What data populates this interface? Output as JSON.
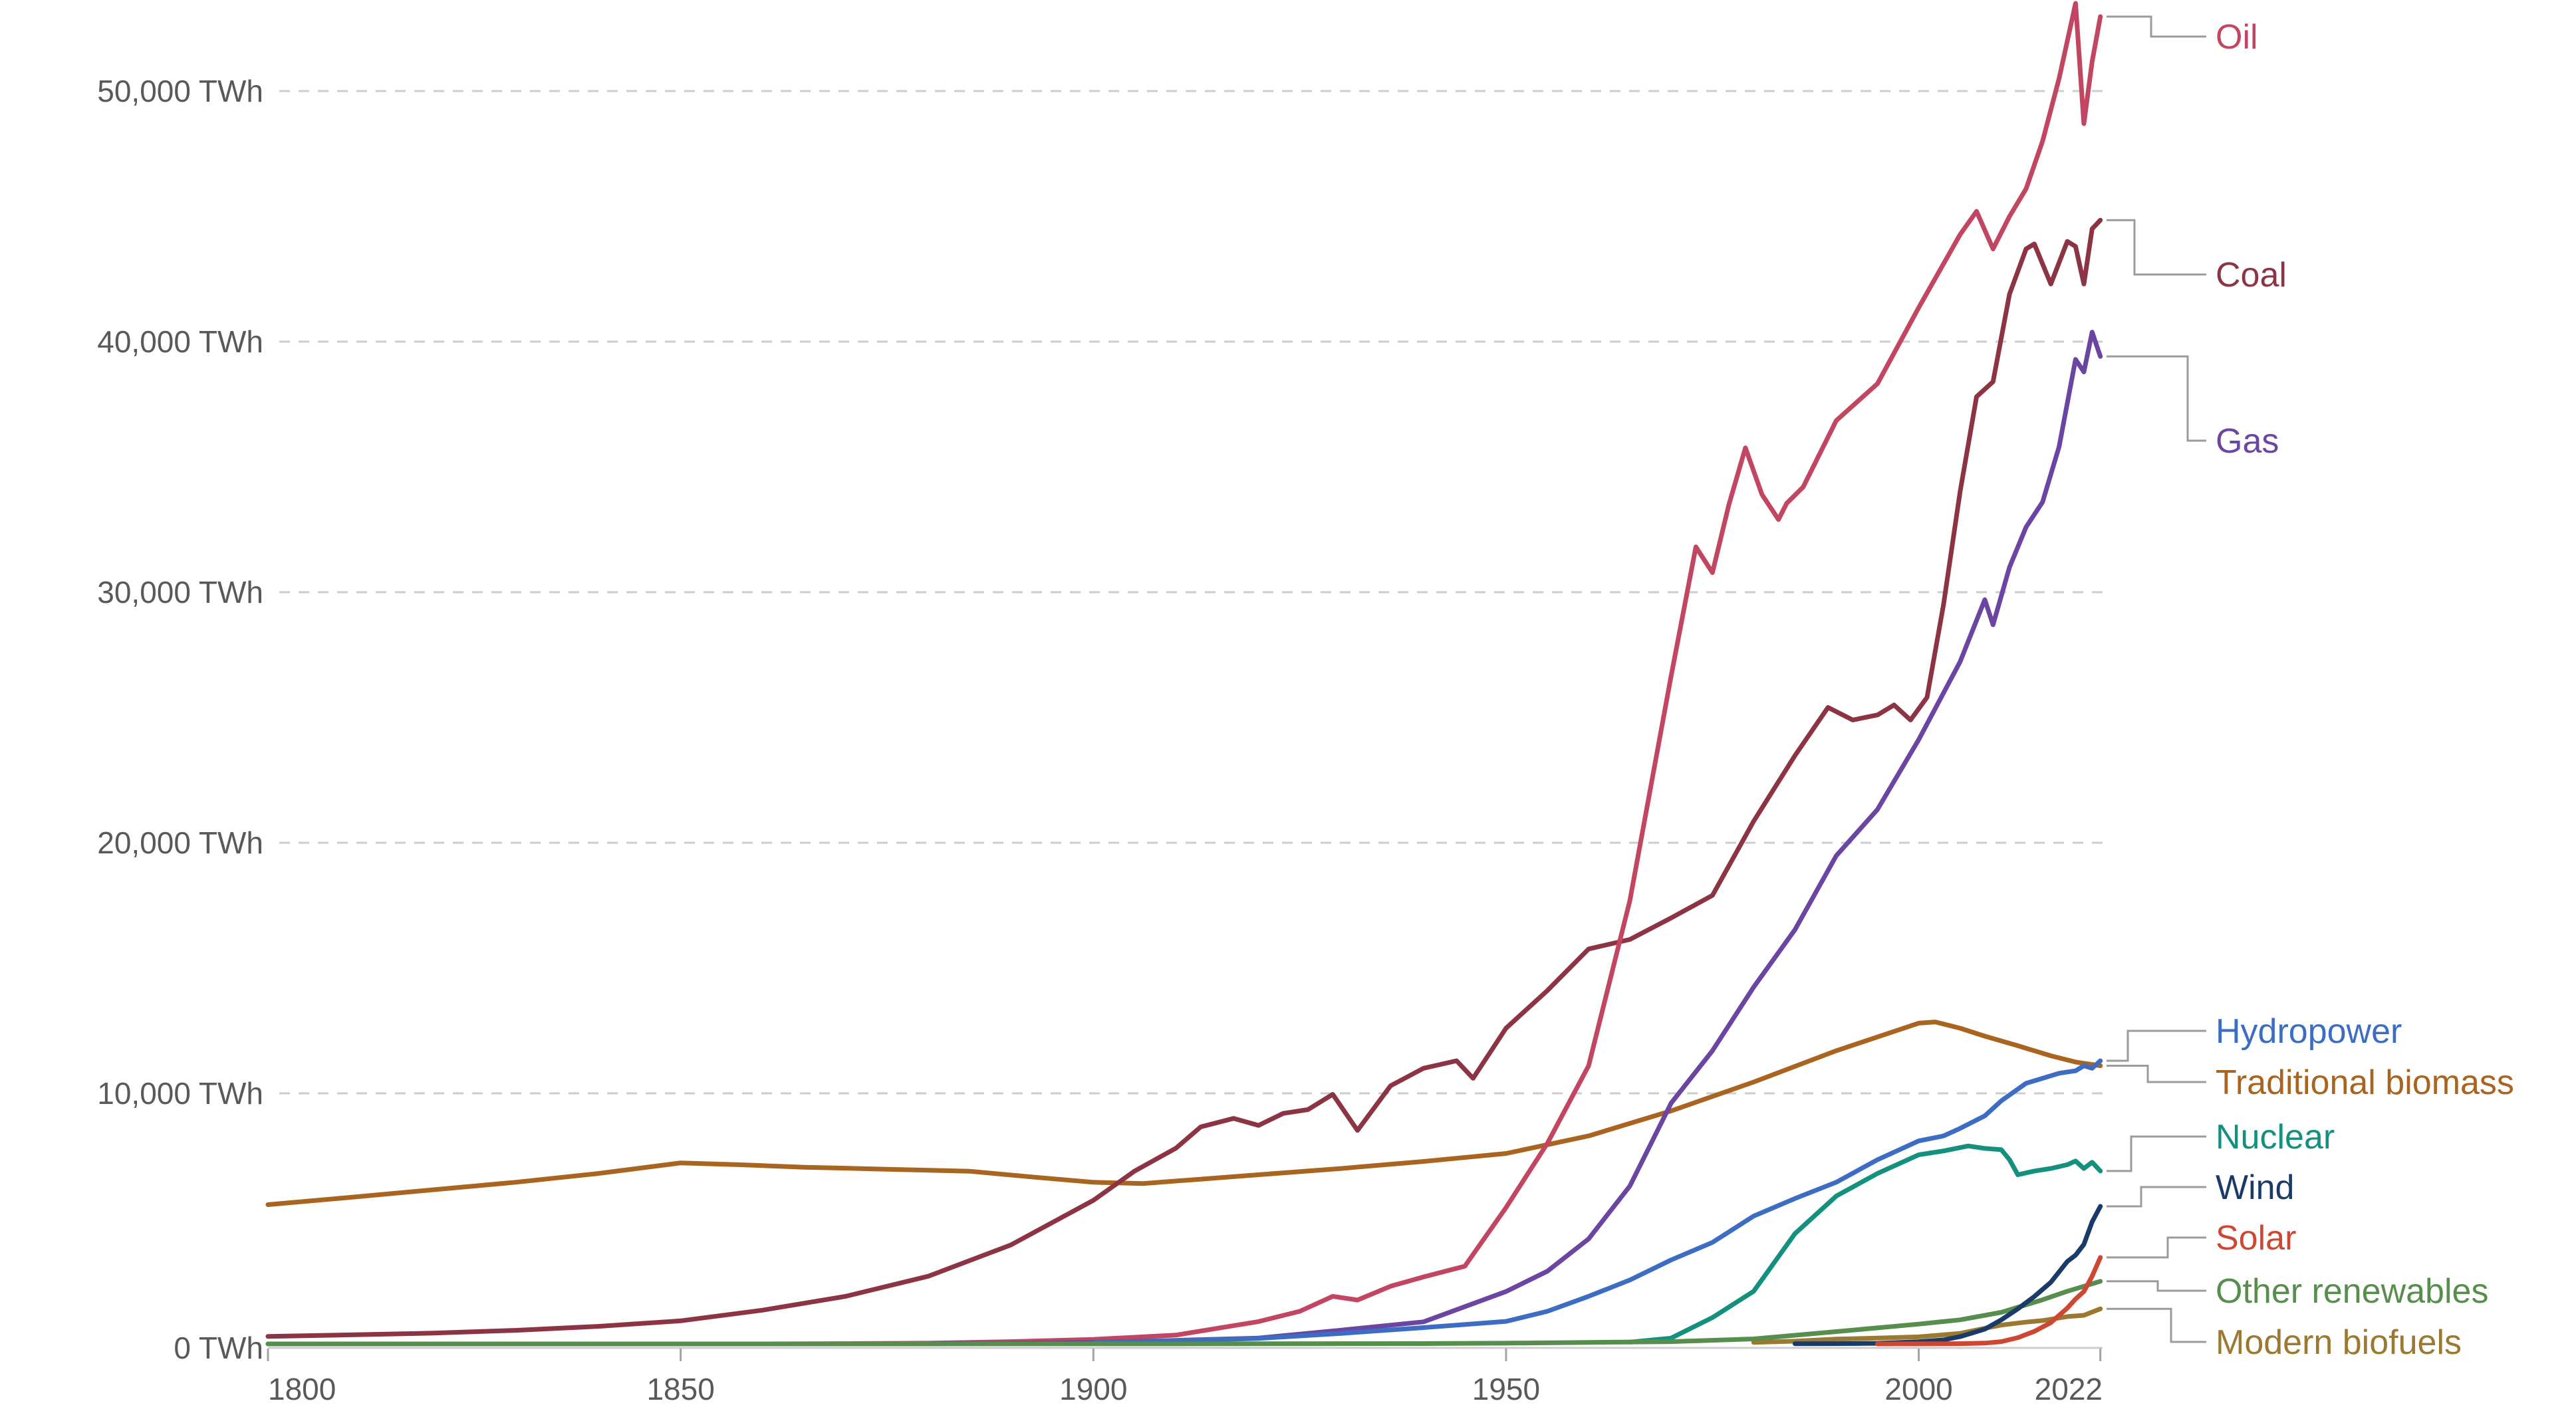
{
  "chart_data": {
    "type": "line",
    "title": "",
    "unit": "TWh",
    "x_axis": {
      "min": 1800,
      "max": 2022,
      "ticks": [
        1800,
        1850,
        1900,
        1950,
        2000,
        2022
      ],
      "tick_labels": [
        "1800",
        "1850",
        "1900",
        "1950",
        "2000",
        "2022"
      ]
    },
    "y_axis": {
      "min": 0,
      "max": 53600,
      "ticks": [
        0,
        10000,
        20000,
        30000,
        40000,
        50000
      ],
      "tick_labels": [
        "0 TWh",
        "10,000 TWh",
        "20,000 TWh",
        "30,000 TWh",
        "40,000 TWh",
        "50,000 TWh"
      ],
      "gridlines": "dashed horizontal"
    },
    "legend_position": "right-edge direct labels with gray leader lines",
    "series": [
      {
        "id": "oil",
        "name": "Oil",
        "color": "#c24562",
        "points": [
          [
            1800,
            0
          ],
          [
            1850,
            0
          ],
          [
            1860,
            1
          ],
          [
            1870,
            10
          ],
          [
            1880,
            30
          ],
          [
            1890,
            90
          ],
          [
            1900,
            180
          ],
          [
            1910,
            350
          ],
          [
            1920,
            890
          ],
          [
            1925,
            1300
          ],
          [
            1929,
            1900
          ],
          [
            1932,
            1750
          ],
          [
            1936,
            2300
          ],
          [
            1940,
            2670
          ],
          [
            1945,
            3100
          ],
          [
            1950,
            5440
          ],
          [
            1955,
            8000
          ],
          [
            1960,
            11100
          ],
          [
            1965,
            17690
          ],
          [
            1970,
            26660
          ],
          [
            1973,
            31810
          ],
          [
            1975,
            30780
          ],
          [
            1977,
            33500
          ],
          [
            1979,
            35760
          ],
          [
            1981,
            33900
          ],
          [
            1983,
            32900
          ],
          [
            1984,
            33550
          ],
          [
            1986,
            34200
          ],
          [
            1990,
            36850
          ],
          [
            1995,
            38320
          ],
          [
            2000,
            41360
          ],
          [
            2005,
            44270
          ],
          [
            2007,
            45200
          ],
          [
            2009,
            43700
          ],
          [
            2011,
            45000
          ],
          [
            2013,
            46100
          ],
          [
            2015,
            48000
          ],
          [
            2017,
            50500
          ],
          [
            2019,
            53500
          ],
          [
            2020,
            48700
          ],
          [
            2021,
            51170
          ],
          [
            2022,
            52970
          ]
        ]
      },
      {
        "id": "coal",
        "name": "Coal",
        "color": "#8d3444",
        "points": [
          [
            1800,
            300
          ],
          [
            1810,
            360
          ],
          [
            1820,
            430
          ],
          [
            1830,
            540
          ],
          [
            1840,
            700
          ],
          [
            1850,
            920
          ],
          [
            1860,
            1350
          ],
          [
            1870,
            1900
          ],
          [
            1880,
            2700
          ],
          [
            1890,
            3950
          ],
          [
            1900,
            5730
          ],
          [
            1905,
            6900
          ],
          [
            1910,
            7810
          ],
          [
            1913,
            8660
          ],
          [
            1917,
            9000
          ],
          [
            1920,
            8720
          ],
          [
            1923,
            9200
          ],
          [
            1926,
            9350
          ],
          [
            1929,
            9960
          ],
          [
            1932,
            8520
          ],
          [
            1936,
            10300
          ],
          [
            1940,
            11000
          ],
          [
            1944,
            11300
          ],
          [
            1946,
            10600
          ],
          [
            1950,
            12600
          ],
          [
            1955,
            14100
          ],
          [
            1960,
            15760
          ],
          [
            1965,
            16140
          ],
          [
            1970,
            17000
          ],
          [
            1975,
            17900
          ],
          [
            1980,
            20860
          ],
          [
            1985,
            23480
          ],
          [
            1989,
            25400
          ],
          [
            1992,
            24900
          ],
          [
            1995,
            25100
          ],
          [
            1997,
            25500
          ],
          [
            1999,
            24900
          ],
          [
            2001,
            25800
          ],
          [
            2003,
            29500
          ],
          [
            2005,
            34000
          ],
          [
            2007,
            37800
          ],
          [
            2009,
            38400
          ],
          [
            2011,
            41900
          ],
          [
            2013,
            43700
          ],
          [
            2014,
            43900
          ],
          [
            2016,
            42300
          ],
          [
            2018,
            44000
          ],
          [
            2019,
            43800
          ],
          [
            2020,
            42300
          ],
          [
            2021,
            44500
          ],
          [
            2022,
            44850
          ]
        ]
      },
      {
        "id": "gas",
        "name": "Gas",
        "color": "#6a46a2",
        "points": [
          [
            1880,
            5
          ],
          [
            1890,
            30
          ],
          [
            1900,
            64
          ],
          [
            1910,
            140
          ],
          [
            1920,
            233
          ],
          [
            1930,
            550
          ],
          [
            1940,
            880
          ],
          [
            1950,
            2090
          ],
          [
            1955,
            2900
          ],
          [
            1960,
            4190
          ],
          [
            1965,
            6300
          ],
          [
            1970,
            9610
          ],
          [
            1975,
            11700
          ],
          [
            1980,
            14240
          ],
          [
            1985,
            16530
          ],
          [
            1990,
            19480
          ],
          [
            1995,
            21330
          ],
          [
            2000,
            24120
          ],
          [
            2005,
            27220
          ],
          [
            2008,
            29700
          ],
          [
            2009,
            28700
          ],
          [
            2011,
            31000
          ],
          [
            2013,
            32600
          ],
          [
            2015,
            33600
          ],
          [
            2017,
            35800
          ],
          [
            2019,
            39290
          ],
          [
            2020,
            38790
          ],
          [
            2021,
            40380
          ],
          [
            2022,
            39410
          ]
        ]
      },
      {
        "id": "hydropower",
        "name": "Hydropower",
        "color": "#3d6dc2",
        "points": [
          [
            1900,
            50
          ],
          [
            1910,
            130
          ],
          [
            1920,
            220
          ],
          [
            1930,
            420
          ],
          [
            1940,
            650
          ],
          [
            1950,
            900
          ],
          [
            1955,
            1300
          ],
          [
            1960,
            1900
          ],
          [
            1965,
            2550
          ],
          [
            1970,
            3350
          ],
          [
            1975,
            4050
          ],
          [
            1980,
            5100
          ],
          [
            1985,
            5800
          ],
          [
            1990,
            6450
          ],
          [
            1995,
            7350
          ],
          [
            2000,
            8100
          ],
          [
            2003,
            8300
          ],
          [
            2005,
            8600
          ],
          [
            2008,
            9100
          ],
          [
            2010,
            9700
          ],
          [
            2013,
            10400
          ],
          [
            2015,
            10600
          ],
          [
            2017,
            10800
          ],
          [
            2019,
            10900
          ],
          [
            2020,
            11100
          ],
          [
            2021,
            11000
          ],
          [
            2022,
            11300
          ]
        ]
      },
      {
        "id": "traditional_biomass",
        "name": "Traditional biomass",
        "color": "#a9641f",
        "points": [
          [
            1800,
            5556
          ],
          [
            1810,
            5850
          ],
          [
            1820,
            6150
          ],
          [
            1830,
            6450
          ],
          [
            1840,
            6800
          ],
          [
            1850,
            7222
          ],
          [
            1857,
            7150
          ],
          [
            1865,
            7050
          ],
          [
            1875,
            6970
          ],
          [
            1885,
            6890
          ],
          [
            1893,
            6650
          ],
          [
            1900,
            6450
          ],
          [
            1906,
            6400
          ],
          [
            1912,
            6550
          ],
          [
            1920,
            6750
          ],
          [
            1930,
            7000
          ],
          [
            1940,
            7280
          ],
          [
            1950,
            7600
          ],
          [
            1960,
            8300
          ],
          [
            1970,
            9300
          ],
          [
            1980,
            10450
          ],
          [
            1990,
            11700
          ],
          [
            1995,
            12250
          ],
          [
            2000,
            12800
          ],
          [
            2002,
            12850
          ],
          [
            2005,
            12600
          ],
          [
            2008,
            12280
          ],
          [
            2012,
            11900
          ],
          [
            2016,
            11500
          ],
          [
            2019,
            11250
          ],
          [
            2022,
            11100
          ]
        ]
      },
      {
        "id": "nuclear",
        "name": "Nuclear",
        "color": "#13917e",
        "points": [
          [
            1965,
            70
          ],
          [
            1970,
            230
          ],
          [
            1975,
            1050
          ],
          [
            1980,
            2100
          ],
          [
            1985,
            4400
          ],
          [
            1990,
            5900
          ],
          [
            1995,
            6800
          ],
          [
            2000,
            7550
          ],
          [
            2003,
            7700
          ],
          [
            2006,
            7900
          ],
          [
            2008,
            7800
          ],
          [
            2010,
            7750
          ],
          [
            2011,
            7350
          ],
          [
            2012,
            6750
          ],
          [
            2014,
            6900
          ],
          [
            2016,
            7000
          ],
          [
            2018,
            7150
          ],
          [
            2019,
            7300
          ],
          [
            2020,
            7000
          ],
          [
            2021,
            7250
          ],
          [
            2022,
            6900
          ]
        ]
      },
      {
        "id": "wind",
        "name": "Wind",
        "color": "#1a3a68",
        "points": [
          [
            1985,
            5
          ],
          [
            1990,
            11
          ],
          [
            1995,
            25
          ],
          [
            2000,
            85
          ],
          [
            2003,
            160
          ],
          [
            2005,
            290
          ],
          [
            2008,
            590
          ],
          [
            2010,
            960
          ],
          [
            2012,
            1400
          ],
          [
            2014,
            1890
          ],
          [
            2016,
            2460
          ],
          [
            2018,
            3290
          ],
          [
            2019,
            3540
          ],
          [
            2020,
            3970
          ],
          [
            2021,
            4870
          ],
          [
            2022,
            5490
          ]
        ]
      },
      {
        "id": "solar",
        "name": "Solar",
        "color": "#cd4732",
        "points": [
          [
            1995,
            1
          ],
          [
            2000,
            3
          ],
          [
            2005,
            11
          ],
          [
            2008,
            33
          ],
          [
            2010,
            90
          ],
          [
            2012,
            250
          ],
          [
            2014,
            500
          ],
          [
            2016,
            850
          ],
          [
            2018,
            1430
          ],
          [
            2019,
            1790
          ],
          [
            2020,
            2090
          ],
          [
            2021,
            2700
          ],
          [
            2022,
            3450
          ]
        ]
      },
      {
        "id": "other_renewables",
        "name": "Other renewables",
        "color": "#578e4e",
        "points": [
          [
            1800,
            1
          ],
          [
            1850,
            1
          ],
          [
            1900,
            2
          ],
          [
            1920,
            5
          ],
          [
            1940,
            12
          ],
          [
            1950,
            30
          ],
          [
            1960,
            60
          ],
          [
            1970,
            90
          ],
          [
            1980,
            200
          ],
          [
            1990,
            490
          ],
          [
            1995,
            640
          ],
          [
            2000,
            790
          ],
          [
            2005,
            960
          ],
          [
            2010,
            1260
          ],
          [
            2015,
            1760
          ],
          [
            2018,
            2100
          ],
          [
            2020,
            2300
          ],
          [
            2022,
            2500
          ]
        ]
      },
      {
        "id": "modern_biofuels",
        "name": "Modern biofuels",
        "color": "#9c7930",
        "points": [
          [
            1980,
            60
          ],
          [
            1985,
            110
          ],
          [
            1990,
            190
          ],
          [
            1995,
            230
          ],
          [
            2000,
            280
          ],
          [
            2005,
            420
          ],
          [
            2008,
            620
          ],
          [
            2010,
            750
          ],
          [
            2013,
            870
          ],
          [
            2015,
            930
          ],
          [
            2018,
            1090
          ],
          [
            2020,
            1140
          ],
          [
            2022,
            1400
          ]
        ]
      }
    ]
  },
  "colors": {
    "background": "#ffffff",
    "axis_text": "#595959",
    "gridline": "#cdcdcd",
    "tick_mark": "#a3a3a3",
    "leader_line": "#9b9b9b"
  }
}
